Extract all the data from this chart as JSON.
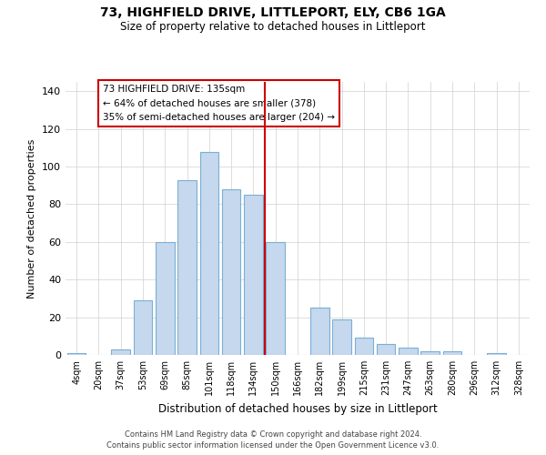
{
  "title": "73, HIGHFIELD DRIVE, LITTLEPORT, ELY, CB6 1GA",
  "subtitle": "Size of property relative to detached houses in Littleport",
  "xlabel": "Distribution of detached houses by size in Littleport",
  "ylabel": "Number of detached properties",
  "bar_labels": [
    "4sqm",
    "20sqm",
    "37sqm",
    "53sqm",
    "69sqm",
    "85sqm",
    "101sqm",
    "118sqm",
    "134sqm",
    "150sqm",
    "166sqm",
    "182sqm",
    "199sqm",
    "215sqm",
    "231sqm",
    "247sqm",
    "263sqm",
    "280sqm",
    "296sqm",
    "312sqm",
    "328sqm"
  ],
  "bar_heights": [
    1,
    0,
    3,
    29,
    60,
    93,
    108,
    88,
    85,
    60,
    0,
    25,
    19,
    9,
    6,
    4,
    2,
    2,
    0,
    1,
    0
  ],
  "bar_color": "#c5d8ed",
  "bar_edge_color": "#7bafd4",
  "vline_color": "#cc0000",
  "annotation_title": "73 HIGHFIELD DRIVE: 135sqm",
  "annotation_line1": "← 64% of detached houses are smaller (378)",
  "annotation_line2": "35% of semi-detached houses are larger (204) →",
  "annotation_box_color": "#cc0000",
  "ylim": [
    0,
    145
  ],
  "yticks": [
    0,
    20,
    40,
    60,
    80,
    100,
    120,
    140
  ],
  "footer1": "Contains HM Land Registry data © Crown copyright and database right 2024.",
  "footer2": "Contains public sector information licensed under the Open Government Licence v3.0.",
  "bg_color": "#ffffff",
  "grid_color": "#d0d0d0"
}
